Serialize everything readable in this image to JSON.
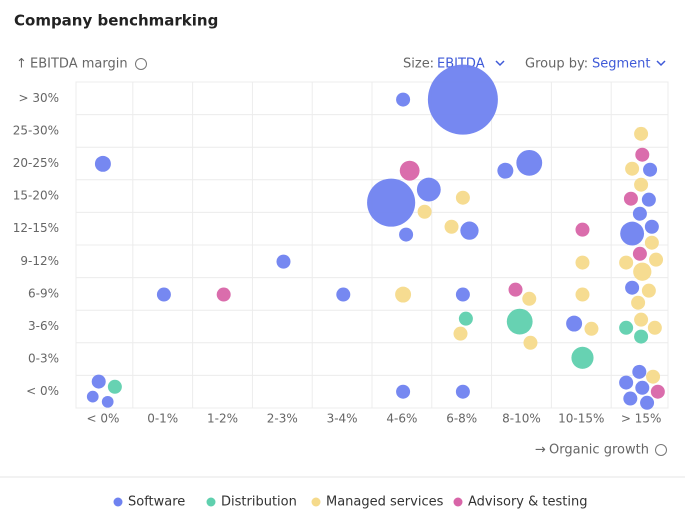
{
  "chart_data": {
    "type": "bubble",
    "title": "Company benchmarking",
    "ylabel": "EBITDA margin",
    "xlabel": "Organic growth",
    "controls": {
      "size_label": "Size:",
      "size_value": "EBITDA",
      "group_label": "Group by:",
      "group_value": "Segment"
    },
    "xlim": [
      -0.45,
      9.45
    ],
    "ylim": [
      -0.5,
      9.5
    ],
    "xticks": [
      {
        "value": 0,
        "label": "< 0%"
      },
      {
        "value": 1,
        "label": "0-1%"
      },
      {
        "value": 2,
        "label": "1-2%"
      },
      {
        "value": 3,
        "label": "2-3%"
      },
      {
        "value": 4,
        "label": "3-4%"
      },
      {
        "value": 5,
        "label": "4-6%"
      },
      {
        "value": 6,
        "label": "6-8%"
      },
      {
        "value": 7,
        "label": "8-10%"
      },
      {
        "value": 8,
        "label": "10-15%"
      },
      {
        "value": 9,
        "label": "> 15%"
      }
    ],
    "yticks": [
      {
        "value": 0,
        "label": "< 0%"
      },
      {
        "value": 1,
        "label": "0-3%"
      },
      {
        "value": 2,
        "label": "3-6%"
      },
      {
        "value": 3,
        "label": "6-9%"
      },
      {
        "value": 4,
        "label": "9-12%"
      },
      {
        "value": 5,
        "label": "12-15%"
      },
      {
        "value": 6,
        "label": "15-20%"
      },
      {
        "value": 7,
        "label": "20-25%"
      },
      {
        "value": 8,
        "label": "25-30%"
      },
      {
        "value": 9,
        "label": "> 30%"
      }
    ],
    "grid": true,
    "series": [
      {
        "name": "Software",
        "color": "#6f82f0",
        "x": [
          5.02,
          6.02,
          0,
          6.73,
          7.13,
          5.45,
          4.82,
          5.07,
          6.13,
          3.02,
          1.02,
          4.02,
          6.02,
          7.88,
          -0.07,
          -0.17,
          0.08,
          5.02,
          6.02,
          9.15,
          9.13,
          8.98,
          9.18,
          8.85,
          8.85,
          8.97,
          8.75,
          9.02,
          8.82,
          9.1
        ],
        "y": [
          8.96,
          8.96,
          6.99,
          6.78,
          7.02,
          6.2,
          5.8,
          4.82,
          4.94,
          3.99,
          2.98,
          2.98,
          2.98,
          2.09,
          0.31,
          -0.15,
          -0.31,
          0,
          0,
          6.81,
          5.89,
          5.46,
          5.06,
          4.85,
          3.19,
          0.61,
          0.28,
          0.12,
          -0.21,
          -0.34
        ],
        "size": [
          10,
          250,
          13,
          13,
          34,
          29,
          118,
          10,
          17,
          10,
          10,
          10,
          10,
          13,
          10,
          7,
          7,
          10,
          10,
          10,
          10,
          10,
          10,
          29,
          10,
          10,
          10,
          10,
          10,
          10
        ]
      },
      {
        "name": "Distribution",
        "color": "#5fd0ae",
        "x": [
          0.2,
          6.07,
          6.97,
          8.02,
          8.75,
          9.0
        ],
        "y": [
          0.15,
          2.24,
          2.15,
          1.04,
          1.96,
          1.69
        ],
        "size": [
          10,
          10,
          34,
          25,
          10,
          10
        ]
      },
      {
        "name": "Managed services",
        "color": "#f5da8b",
        "x": [
          9.0,
          8.85,
          9.0,
          6.02,
          5.38,
          5.83,
          9.18,
          9.25,
          8.02,
          8.75,
          9.02,
          5.02,
          7.13,
          8.02,
          9.13,
          8.95,
          9.0,
          9.23,
          8.17,
          5.98,
          7.15,
          9.2
        ],
        "y": [
          7.91,
          6.84,
          6.35,
          5.95,
          5.52,
          5.06,
          4.57,
          4.05,
          3.96,
          3.96,
          3.68,
          2.98,
          2.85,
          2.98,
          3.1,
          2.73,
          2.21,
          1.96,
          1.93,
          1.78,
          1.5,
          0.46
        ],
        "size": [
          10,
          10,
          10,
          10,
          10,
          10,
          10,
          10,
          10,
          10,
          17,
          13,
          10,
          10,
          10,
          10,
          10,
          10,
          10,
          10,
          10,
          10
        ]
      },
      {
        "name": "Advisory & testing",
        "color": "#d865a8",
        "x": [
          5.13,
          9.02,
          8.83,
          8.02,
          8.98,
          2.02,
          6.9,
          9.28
        ],
        "y": [
          6.78,
          7.27,
          5.92,
          4.97,
          4.23,
          2.98,
          3.13,
          0
        ],
        "size": [
          20,
          10,
          10,
          10,
          10,
          10,
          10,
          10
        ]
      }
    ]
  }
}
